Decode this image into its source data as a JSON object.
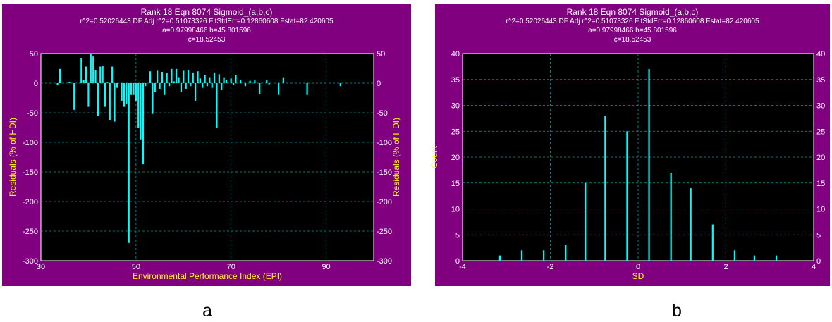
{
  "chart_data": [
    {
      "type": "bar",
      "title": "Rank 18  Eqn 8074  Sigmoid_(a,b,c)",
      "subtitle_lines": [
        "r^2=0.52026443  DF Adj r^2=0.51073326  FitStdErr=0.12860608  Fstat=82.420605",
        "a=0.97998466 b=45.801596",
        "c=18.52453"
      ],
      "xlabel": "Environmental Performance Index (EPI)",
      "ylabel": "Residuals (% of HDI)",
      "xlim": [
        30,
        100
      ],
      "ylim": [
        -300,
        50
      ],
      "xticks": [
        "30",
        "50",
        "70",
        "90"
      ],
      "yticks": [
        "50",
        "0",
        "-50",
        "-100",
        "-150",
        "-200",
        "-250",
        "-300"
      ],
      "grid": true,
      "colors": {
        "background": "#800080",
        "plot": "#000000",
        "bars": "#00ffff",
        "grid": "#00a0a0",
        "axis_labels": "#ffff00",
        "text": "#ffffff"
      },
      "x": [
        33.5,
        34,
        36,
        37,
        38.5,
        39,
        39.5,
        40,
        40.5,
        41,
        41.5,
        42,
        42.5,
        43,
        43.5,
        44,
        44.5,
        45,
        45.5,
        46,
        47,
        47.5,
        48,
        48.5,
        49,
        49.5,
        50,
        50.5,
        51,
        51.5,
        52,
        53,
        53.5,
        54,
        54.5,
        55,
        55.5,
        56,
        56.5,
        57,
        57.5,
        58,
        58.5,
        59,
        59.5,
        60,
        60.5,
        61,
        61.5,
        62,
        62.5,
        63,
        63.5,
        64,
        64.5,
        65,
        65.5,
        66,
        66.5,
        67,
        67.5,
        68,
        68.5,
        69,
        70,
        70.5,
        71,
        72,
        73,
        74,
        75,
        76,
        77.5,
        78,
        80,
        81,
        86,
        93
      ],
      "values": [
        -3,
        24,
        2,
        -45,
        42,
        5,
        28,
        -40,
        50,
        45,
        22,
        -55,
        28,
        29,
        -40,
        1,
        -63,
        28,
        -65,
        -8,
        -30,
        -40,
        -35,
        -270,
        -20,
        -20,
        -30,
        -75,
        -95,
        -137,
        -5,
        20,
        -52,
        -15,
        21,
        -10,
        19,
        -20,
        17,
        -5,
        24,
        3,
        24,
        10,
        -15,
        21,
        -10,
        22,
        -5,
        18,
        -30,
        20,
        8,
        -8,
        14,
        -5,
        10,
        -8,
        18,
        -75,
        15,
        -12,
        10,
        5,
        8,
        -3,
        14,
        6,
        -5,
        4,
        6,
        -18,
        5,
        -2,
        -20,
        10,
        -20,
        -5
      ]
    },
    {
      "type": "bar",
      "title": "Rank 18  Eqn 8074  Sigmoid_(a,b,c)",
      "subtitle_lines": [
        "r^2=0.52026443  DF Adj r^2=0.51073326  FitStdErr=0.12860608  Fstat=82.420605",
        "a=0.97998466 b=45.801596",
        "c=18.52453"
      ],
      "xlabel": "SD",
      "ylabel": "Count",
      "xlim": [
        -4,
        4
      ],
      "ylim": [
        0,
        40
      ],
      "xticks": [
        "-4",
        "-2",
        "0",
        "2",
        "4"
      ],
      "yticks": [
        "40",
        "35",
        "30",
        "25",
        "20",
        "15",
        "10",
        "5",
        "0"
      ],
      "grid": true,
      "colors": {
        "background": "#800080",
        "plot": "#000000",
        "bars": "#00ffff",
        "grid": "#00a0a0",
        "axis_labels": "#ffff00",
        "text": "#ffffff"
      },
      "x": [
        -3.15,
        -2.65,
        -2.15,
        -1.65,
        -1.2,
        -0.75,
        -0.25,
        0.25,
        0.75,
        1.2,
        1.7,
        2.2,
        2.65,
        3.15
      ],
      "values": [
        1,
        2,
        2,
        3,
        15,
        28,
        25,
        37,
        17,
        14,
        7,
        2,
        1,
        1
      ]
    }
  ],
  "captions": [
    "a",
    "b"
  ]
}
